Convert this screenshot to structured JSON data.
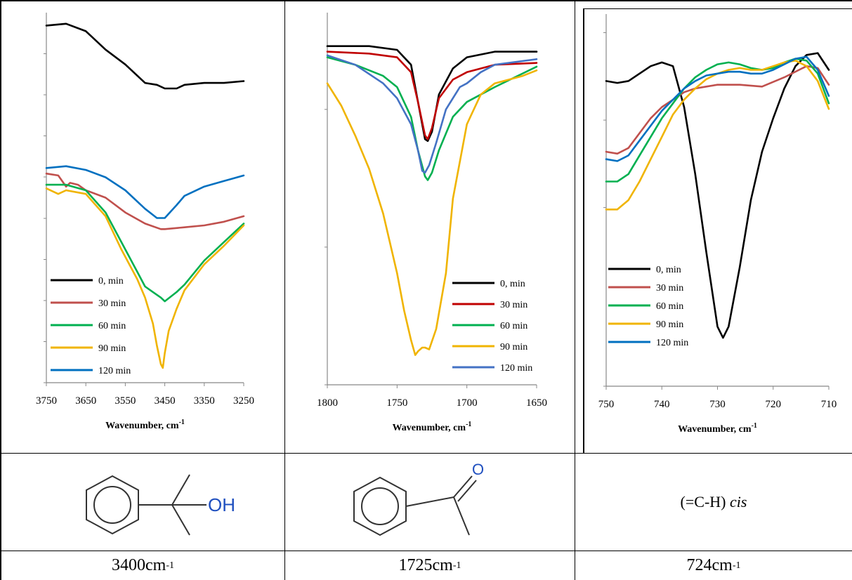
{
  "chart_data": [
    {
      "type": "line",
      "xlabel": "Wavenumber, cm",
      "xlabel_sup": "-1",
      "xlim": [
        3750,
        3250
      ],
      "ylim": [
        0,
        100
      ],
      "xticks": [
        "3750",
        "3650",
        "3550",
        "3450",
        "3350",
        "3250"
      ],
      "legend": "lower-left",
      "grid": false,
      "series": [
        {
          "name": "0, min",
          "color": "#000000",
          "x": [
            3750,
            3700,
            3650,
            3600,
            3550,
            3500,
            3470,
            3450,
            3420,
            3400,
            3350,
            3300,
            3250
          ],
          "y": [
            96.5,
            97,
            95,
            90,
            86,
            81,
            80.5,
            79.5,
            79.5,
            80.5,
            81,
            81,
            81.5
          ]
        },
        {
          "name": "30 min",
          "color": "#c0504d",
          "x": [
            3750,
            3720,
            3700,
            3690,
            3670,
            3650,
            3600,
            3550,
            3500,
            3460,
            3450,
            3400,
            3350,
            3300,
            3250
          ],
          "y": [
            56.5,
            56,
            53,
            54,
            53.5,
            52,
            50,
            46,
            43,
            41.5,
            41.5,
            42,
            42.5,
            43.5,
            45
          ]
        },
        {
          "name": "60 min",
          "color": "#00b050",
          "x": [
            3750,
            3700,
            3650,
            3600,
            3560,
            3520,
            3500,
            3480,
            3460,
            3450,
            3420,
            3400,
            3350,
            3300,
            3250
          ],
          "y": [
            53.5,
            53.5,
            52,
            46,
            38,
            30,
            26,
            24.5,
            23,
            22,
            24.5,
            26.5,
            33,
            38,
            43
          ]
        },
        {
          "name": "90 min",
          "color": "#f0b400",
          "x": [
            3750,
            3720,
            3700,
            3650,
            3600,
            3560,
            3520,
            3500,
            3480,
            3470,
            3460,
            3455,
            3450,
            3440,
            3420,
            3400,
            3350,
            3300,
            3250
          ],
          "y": [
            52.5,
            51,
            52,
            51,
            45,
            36,
            28,
            23,
            16,
            10,
            5,
            4,
            8,
            14,
            20,
            25,
            32,
            37,
            42.5
          ]
        },
        {
          "name": "120 min",
          "color": "#0070c0",
          "x": [
            3750,
            3700,
            3650,
            3600,
            3550,
            3500,
            3470,
            3450,
            3420,
            3400,
            3350,
            3300,
            3250
          ],
          "y": [
            58,
            58.5,
            57.5,
            55.5,
            52,
            47,
            44.5,
            44.5,
            48,
            50.5,
            53,
            54.5,
            56
          ]
        }
      ],
      "legend_entries": [
        "0, min",
        "30 min",
        "60 min",
        "90 min",
        "120 min"
      ]
    },
    {
      "type": "line",
      "xlabel": "Wavenumber, cm",
      "xlabel_sup": "-1",
      "xlim": [
        1800,
        1650
      ],
      "ylim": [
        0,
        100
      ],
      "xticks": [
        "1800",
        "1750",
        "1700",
        "1650"
      ],
      "legend": "lower-right",
      "grid": false,
      "series": [
        {
          "name": "0, min",
          "color": "#000000",
          "x": [
            1800,
            1770,
            1750,
            1740,
            1735,
            1730,
            1728,
            1725,
            1720,
            1710,
            1700,
            1680,
            1650
          ],
          "y": [
            91,
            91,
            90,
            86,
            76,
            66,
            65.5,
            68,
            78,
            85,
            88,
            89.5,
            89.5
          ]
        },
        {
          "name": "30 min",
          "color": "#c00000",
          "x": [
            1800,
            1770,
            1750,
            1740,
            1735,
            1730,
            1728,
            1725,
            1720,
            1710,
            1700,
            1680,
            1650
          ],
          "y": [
            89.5,
            89,
            88,
            84,
            76,
            67,
            66,
            69,
            77,
            82,
            84,
            86,
            86.5
          ]
        },
        {
          "name": "60 min",
          "color": "#00b050",
          "x": [
            1800,
            1780,
            1760,
            1750,
            1740,
            1735,
            1730,
            1728,
            1725,
            1720,
            1710,
            1700,
            1680,
            1650
          ],
          "y": [
            88,
            86,
            83,
            80,
            72,
            63,
            56,
            55,
            57,
            63,
            72,
            76,
            80,
            85.5
          ]
        },
        {
          "name": "90 min",
          "color": "#f0b400",
          "x": [
            1800,
            1790,
            1780,
            1770,
            1760,
            1750,
            1745,
            1740,
            1737,
            1735,
            1732,
            1730,
            1727,
            1722,
            1715,
            1710,
            1700,
            1690,
            1680,
            1660,
            1650
          ],
          "y": [
            81,
            75,
            67,
            58,
            46,
            30,
            20,
            12,
            8,
            9,
            10,
            10,
            9.5,
            15,
            30,
            50,
            70,
            78,
            81,
            83,
            84.5
          ]
        },
        {
          "name": "120 min",
          "color": "#4472c4",
          "x": [
            1800,
            1780,
            1760,
            1750,
            1740,
            1735,
            1732,
            1730,
            1727,
            1722,
            1715,
            1705,
            1700,
            1690,
            1680,
            1650
          ],
          "y": [
            88.5,
            86,
            81,
            77,
            70,
            63,
            57.5,
            57,
            59,
            65,
            74,
            80,
            81,
            84,
            86,
            87.5
          ]
        }
      ],
      "legend_entries": [
        "0, min",
        "30 min",
        "60 min",
        "90 min",
        "120 min"
      ]
    },
    {
      "type": "line",
      "xlabel": "Wavenumber, cm",
      "xlabel_sup": "-1",
      "xlim": [
        750,
        710
      ],
      "ylim": [
        0,
        100
      ],
      "xticks": [
        "750",
        "740",
        "730",
        "720",
        "710"
      ],
      "legend": "lower-left",
      "grid": false,
      "series": [
        {
          "name": "0, min",
          "color": "#000000",
          "x": [
            750,
            748,
            746,
            744,
            742,
            740,
            738,
            736,
            734,
            732,
            730,
            729,
            728,
            726,
            724,
            722,
            720,
            718,
            716,
            714,
            712,
            710
          ],
          "y": [
            82,
            81.5,
            82,
            84,
            86,
            87,
            86,
            75,
            57,
            36,
            16,
            13,
            16,
            32,
            50,
            63,
            72,
            80,
            86,
            89,
            89.5,
            85
          ]
        },
        {
          "name": "30 min",
          "color": "#c0504d",
          "x": [
            750,
            748,
            746,
            744,
            742,
            740,
            738,
            736,
            734,
            732,
            730,
            726,
            722,
            718,
            714,
            712,
            710
          ],
          "y": [
            63,
            62.5,
            64,
            68,
            72,
            75,
            77,
            79,
            80,
            80.5,
            81,
            81,
            80.5,
            83,
            86,
            85.5,
            81
          ]
        },
        {
          "name": "60 min",
          "color": "#00b050",
          "x": [
            750,
            748,
            746,
            744,
            742,
            740,
            738,
            736,
            734,
            732,
            730,
            728,
            726,
            724,
            722,
            720,
            718,
            716,
            714,
            712,
            710
          ],
          "y": [
            55,
            55,
            57,
            62,
            67,
            72,
            76,
            80,
            83,
            85,
            86.5,
            87,
            86.5,
            85.5,
            85,
            85.5,
            87,
            88,
            87.5,
            84,
            76
          ]
        },
        {
          "name": "90 min",
          "color": "#f0b400",
          "x": [
            750,
            748,
            746,
            744,
            742,
            740,
            738,
            736,
            734,
            732,
            730,
            728,
            726,
            724,
            722,
            720,
            718,
            716,
            714,
            712,
            710
          ],
          "y": [
            47.5,
            47.5,
            50,
            55,
            61,
            67,
            73,
            77,
            80,
            82.5,
            84,
            85,
            85.5,
            85,
            85,
            86,
            87,
            87.5,
            86,
            82,
            74.5
          ]
        },
        {
          "name": "120 min",
          "color": "#0070c0",
          "x": [
            750,
            748,
            746,
            744,
            742,
            740,
            738,
            736,
            734,
            732,
            730,
            728,
            726,
            724,
            722,
            720,
            718,
            716,
            714,
            712,
            710
          ],
          "y": [
            61,
            60.5,
            62,
            66,
            70,
            74,
            77,
            80,
            82,
            83.5,
            84,
            84.5,
            84.5,
            84,
            84,
            85,
            86.5,
            88,
            88.5,
            85,
            78
          ]
        }
      ],
      "legend_entries": [
        "0, min",
        "30 min",
        "60 min",
        "90 min",
        "120 min"
      ]
    }
  ],
  "structures": {
    "alcohol_label": "OH",
    "ketone_label": "O",
    "cis_label_prefix": "(=C-H) ",
    "cis_label_italic": "cis"
  },
  "frequencies": [
    {
      "value": "3400cm",
      "sup": "-1"
    },
    {
      "value": "1725cm",
      "sup": "-1"
    },
    {
      "value": "724cm",
      "sup": "-1"
    }
  ]
}
